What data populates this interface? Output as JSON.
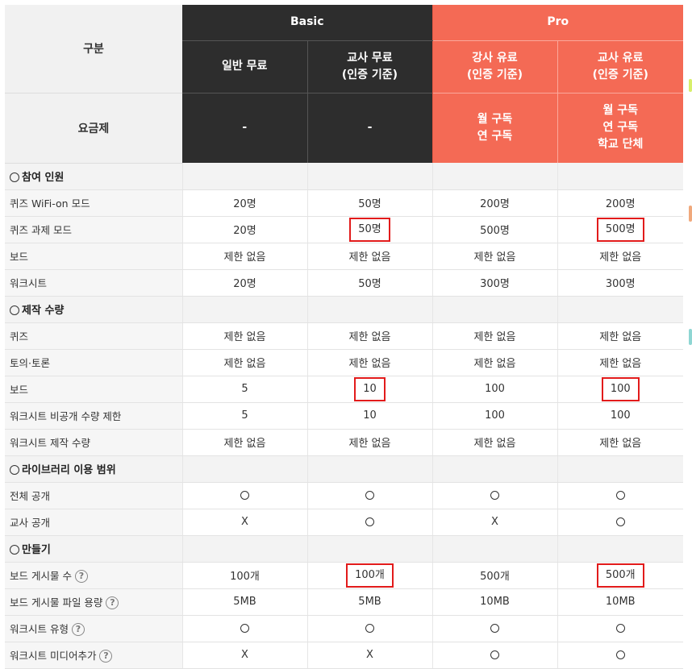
{
  "header": {
    "gubun": "구분",
    "basic": "Basic",
    "pro": "Pro",
    "plans": [
      {
        "name": "일반 무료",
        "sub": ""
      },
      {
        "name": "교사 무료",
        "sub": "(인증 기준)"
      },
      {
        "name": "강사 유료",
        "sub": "(인증 기준)"
      },
      {
        "name": "교사 유료",
        "sub": "(인증 기준)"
      }
    ],
    "pricing_label": "요금제",
    "pricing": [
      {
        "l1": "-",
        "l2": "",
        "l3": ""
      },
      {
        "l1": "-",
        "l2": "",
        "l3": ""
      },
      {
        "l1": "월 구독",
        "l2": "연 구독",
        "l3": ""
      },
      {
        "l1": "월 구독",
        "l2": "연 구독",
        "l3": "학교 단체"
      }
    ]
  },
  "sections": [
    {
      "title": "참여 인원",
      "rows": [
        {
          "label": "퀴즈 WiFi-on 모드",
          "help": false,
          "cells": [
            {
              "t": "20명"
            },
            {
              "t": "50명"
            },
            {
              "t": "200명"
            },
            {
              "t": "200명"
            }
          ]
        },
        {
          "label": "퀴즈 과제 모드",
          "help": false,
          "cells": [
            {
              "t": "20명"
            },
            {
              "t": "50명",
              "hl": true
            },
            {
              "t": "500명"
            },
            {
              "t": "500명",
              "hl": true
            }
          ]
        },
        {
          "label": "보드",
          "help": false,
          "cells": [
            {
              "t": "제한 없음"
            },
            {
              "t": "제한 없음"
            },
            {
              "t": "제한 없음"
            },
            {
              "t": "제한 없음"
            }
          ]
        },
        {
          "label": "워크시트",
          "help": false,
          "cells": [
            {
              "t": "20명"
            },
            {
              "t": "50명"
            },
            {
              "t": "300명"
            },
            {
              "t": "300명"
            }
          ]
        }
      ]
    },
    {
      "title": "제작 수량",
      "rows": [
        {
          "label": "퀴즈",
          "help": false,
          "cells": [
            {
              "t": "제한 없음"
            },
            {
              "t": "제한 없음"
            },
            {
              "t": "제한 없음"
            },
            {
              "t": "제한 없음"
            }
          ]
        },
        {
          "label": "토의·토론",
          "help": false,
          "cells": [
            {
              "t": "제한 없음"
            },
            {
              "t": "제한 없음"
            },
            {
              "t": "제한 없음"
            },
            {
              "t": "제한 없음"
            }
          ]
        },
        {
          "label": "보드",
          "help": false,
          "cells": [
            {
              "t": "5"
            },
            {
              "t": "10",
              "hl": true
            },
            {
              "t": "100"
            },
            {
              "t": "100",
              "hl": true
            }
          ]
        },
        {
          "label": "워크시트 비공개 수량 제한",
          "help": false,
          "cells": [
            {
              "t": "5"
            },
            {
              "t": "10"
            },
            {
              "t": "100"
            },
            {
              "t": "100"
            }
          ]
        },
        {
          "label": "워크시트 제작 수량",
          "help": false,
          "cells": [
            {
              "t": "제한 없음"
            },
            {
              "t": "제한 없음"
            },
            {
              "t": "제한 없음"
            },
            {
              "t": "제한 없음"
            }
          ]
        }
      ]
    },
    {
      "title": "라이브러리 이용 범위",
      "rows": [
        {
          "label": "전체 공개",
          "help": false,
          "cells": [
            {
              "t": "○"
            },
            {
              "t": "○"
            },
            {
              "t": "○"
            },
            {
              "t": "○"
            }
          ]
        },
        {
          "label": "교사 공개",
          "help": false,
          "cells": [
            {
              "t": "X"
            },
            {
              "t": "○"
            },
            {
              "t": "X"
            },
            {
              "t": "○"
            }
          ]
        }
      ]
    },
    {
      "title": "만들기",
      "rows": [
        {
          "label": "보드 게시물 수",
          "help": true,
          "cells": [
            {
              "t": "100개"
            },
            {
              "t": "100개",
              "hl": true
            },
            {
              "t": "500개"
            },
            {
              "t": "500개",
              "hl": true
            }
          ]
        },
        {
          "label": "보드 게시물 파일 용량",
          "help": true,
          "cells": [
            {
              "t": "5MB"
            },
            {
              "t": "5MB"
            },
            {
              "t": "10MB"
            },
            {
              "t": "10MB"
            }
          ]
        },
        {
          "label": "워크시트 유형",
          "help": true,
          "cells": [
            {
              "t": "○"
            },
            {
              "t": "○"
            },
            {
              "t": "○"
            },
            {
              "t": "○"
            }
          ]
        },
        {
          "label": "워크시트 미디어추가",
          "help": true,
          "cells": [
            {
              "t": "X"
            },
            {
              "t": "X"
            },
            {
              "t": "○"
            },
            {
              "t": "○"
            }
          ]
        }
      ]
    }
  ],
  "help_icon_glyph": "?",
  "colors": {
    "basic": "#2d2d2d",
    "pro": "#f46a55",
    "highlight": "#e21b1b"
  }
}
